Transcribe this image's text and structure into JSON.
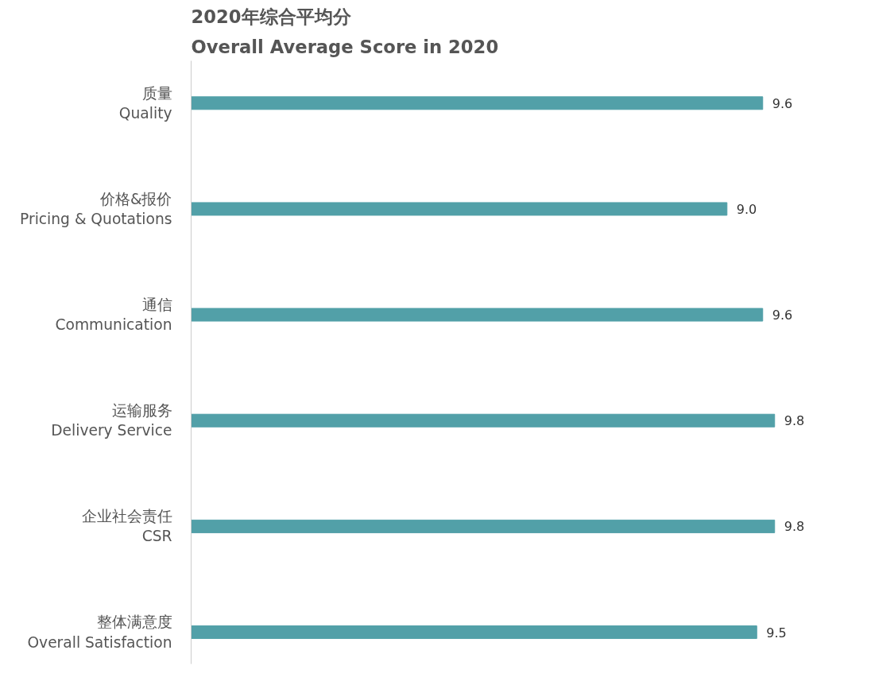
{
  "chart_data": {
    "type": "bar",
    "orientation": "horizontal",
    "title": "2020年综合平均分",
    "subtitle": "Overall Average Score in 2020",
    "categories": [
      "质量\nQuality",
      "价格&报价\nPricing & Quotations",
      "通信\nCommunication",
      "运输服务\nDelivery Service",
      "企业社会责任\nCSR",
      "整体满意度\nOverall Satisfaction"
    ],
    "values": [
      9.6,
      9.0,
      9.6,
      9.8,
      9.8,
      9.5
    ],
    "value_labels": [
      "9.6",
      "9.0",
      "9.6",
      "9.8",
      "9.8",
      "9.5"
    ],
    "color": "#52a0a8",
    "tick_labels": "y",
    "grid": false
  }
}
